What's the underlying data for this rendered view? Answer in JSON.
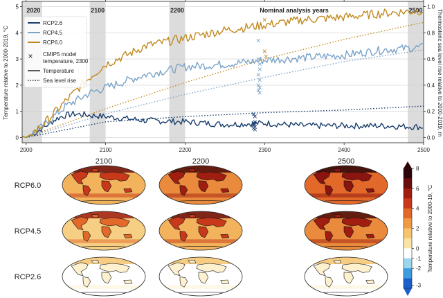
{
  "chart_data": [
    {
      "type": "line",
      "title": "",
      "xlabel": "",
      "ylabel": "Temperature relative to 2000-2019, °C",
      "y2label": "Thermosteric sea level rise relative to 2000-2019, m",
      "xlim": [
        1995,
        2500
      ],
      "ylim": [
        -0.2,
        5.2
      ],
      "y2lim": [
        -0.04,
        1.04
      ],
      "xticks": [
        2000,
        2100,
        2200,
        2300,
        2400,
        2500
      ],
      "yticks": [
        0,
        1,
        2,
        3,
        4,
        5
      ],
      "y2ticks": [
        0.0,
        0.2,
        0.4,
        0.6,
        0.8,
        1.0
      ],
      "grid": true,
      "highlight_years": [
        {
          "label": "2020",
          "from": 1995,
          "to": 2020
        },
        {
          "label": "2100",
          "from": 2080,
          "to": 2100
        },
        {
          "label": "2200",
          "from": 2180,
          "to": 2200
        },
        {
          "label": "2500",
          "from": 2480,
          "to": 2500
        }
      ],
      "analysis_label": "Nominal analysis years",
      "legend_position": "top-left",
      "legend": {
        "series": [
          {
            "name": "RCP2.6",
            "color": "#1a3e6e"
          },
          {
            "name": "RCP4.5",
            "color": "#7aa3c8"
          },
          {
            "name": "RCP6.0",
            "color": "#c08a1e"
          }
        ],
        "styles": [
          {
            "name": "CMIP5 model temperature, 2300",
            "marker": "x"
          },
          {
            "name": "Temperature",
            "line": "solid"
          },
          {
            "name": "Sea level rise",
            "line": "dotted"
          }
        ]
      },
      "series": [
        {
          "name": "RCP2.6",
          "color": "#1a3e6e",
          "temperature": {
            "x": [
              1995,
              2000,
              2010,
              2020,
              2030,
              2040,
              2050,
              2060,
              2070,
              2080,
              2100,
              2150,
              2200,
              2250,
              2300,
              2350,
              2400,
              2450,
              2500
            ],
            "y": [
              0.05,
              0.0,
              0.15,
              0.35,
              0.55,
              0.75,
              0.85,
              0.9,
              0.88,
              0.85,
              0.8,
              0.65,
              0.6,
              0.5,
              0.55,
              0.45,
              0.45,
              0.45,
              0.4
            ]
          },
          "sea_level": {
            "x": [
              2000,
              2100,
              2200,
              2300,
              2400,
              2500
            ],
            "y": [
              0.0,
              0.12,
              0.16,
              0.19,
              0.21,
              0.24
            ]
          },
          "cmip5_2300": [
            0.5,
            0.8,
            0.55,
            0.5,
            0.45,
            0.4,
            0.35,
            0.3,
            0.9,
            0.6
          ]
        },
        {
          "name": "RCP4.5",
          "color": "#7aa3c8",
          "temperature": {
            "x": [
              1995,
              2000,
              2020,
              2050,
              2080,
              2100,
              2130,
              2150,
              2200,
              2250,
              2300,
              2350,
              2400,
              2450,
              2500
            ],
            "y": [
              0.05,
              0.0,
              0.4,
              1.2,
              1.7,
              1.9,
              2.2,
              2.4,
              2.7,
              2.8,
              2.95,
              3.05,
              3.15,
              3.35,
              3.45
            ]
          },
          "sea_level": {
            "x": [
              2000,
              2100,
              2200,
              2300,
              2400,
              2500
            ],
            "y": [
              0.0,
              0.18,
              0.33,
              0.46,
              0.58,
              0.67
            ]
          },
          "cmip5_2300": [
            3.0,
            2.6,
            2.4,
            2.2,
            2.0,
            1.9,
            1.8,
            1.7,
            3.7,
            2.8
          ]
        },
        {
          "name": "RCP6.0",
          "color": "#c08a1e",
          "temperature": {
            "x": [
              1995,
              2000,
              2020,
              2050,
              2080,
              2100,
              2130,
              2150,
              2200,
              2250,
              2300,
              2350,
              2400,
              2450,
              2500
            ],
            "y": [
              0.05,
              0.0,
              0.45,
              1.4,
              2.3,
              2.8,
              3.2,
              3.5,
              3.8,
              4.1,
              4.3,
              4.5,
              4.6,
              4.75,
              4.85
            ]
          },
          "sea_level": {
            "x": [
              2000,
              2100,
              2200,
              2300,
              2400,
              2500
            ],
            "y": [
              0.0,
              0.22,
              0.42,
              0.6,
              0.75,
              0.88
            ]
          },
          "cmip5_2300": [
            4.5,
            3.1,
            3.3
          ]
        }
      ]
    },
    {
      "type": "heatmap",
      "title": "",
      "columns": [
        "2100",
        "2200",
        "2500"
      ],
      "rows": [
        "RCP6.0",
        "RCP4.5",
        "RCP2.6"
      ],
      "panel_level": [
        [
          0.35,
          0.55,
          0.7
        ],
        [
          0.25,
          0.45,
          0.55
        ],
        [
          0.02,
          0.05,
          0.08
        ]
      ]
    }
  ],
  "colorbar": {
    "label": "Temperature relative to 2000-19, °C",
    "ticks": [
      "8",
      "6",
      "4",
      "2",
      "0",
      "-1",
      "-2",
      "-3"
    ],
    "colors": [
      "#2c0508",
      "#6a0d0d",
      "#a01d10",
      "#c8381a",
      "#e3692a",
      "#f09a45",
      "#f6c46e",
      "#fbe4a6",
      "#ffffff",
      "#9bd6ee",
      "#3d9be0",
      "#1c5fcc"
    ]
  }
}
